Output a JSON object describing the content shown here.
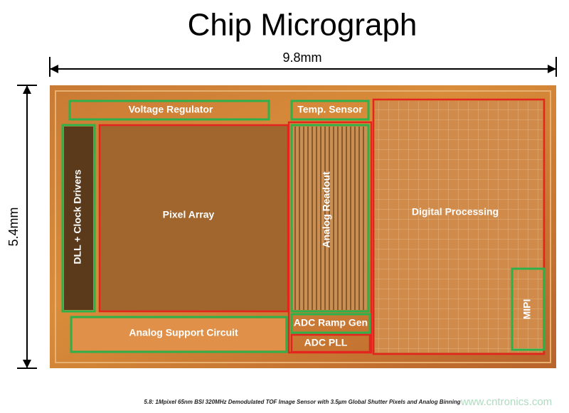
{
  "title": "Chip Micrograph",
  "dimensions": {
    "width": "9.8mm",
    "height": "5.4mm"
  },
  "blocks": [
    {
      "label": "Voltage Regulator"
    },
    {
      "label": "Temp. Sensor"
    },
    {
      "label": "DLL + Clock Drivers"
    },
    {
      "label": "Pixel Array"
    },
    {
      "label": "Analog Readout"
    },
    {
      "label": "Digital Processing"
    },
    {
      "label": "MIPI"
    },
    {
      "label": "Analog Support Circuit"
    },
    {
      "label": "ADC Ramp Gen"
    },
    {
      "label": "ADC PLL"
    }
  ],
  "caption": "5.8: 1Mpixel 65nm BSI 320MHz Demodulated TOF Image Sensor with 3.5µm Global Shutter Pixels and Analog Binning",
  "watermark": "www.cntronics.com"
}
